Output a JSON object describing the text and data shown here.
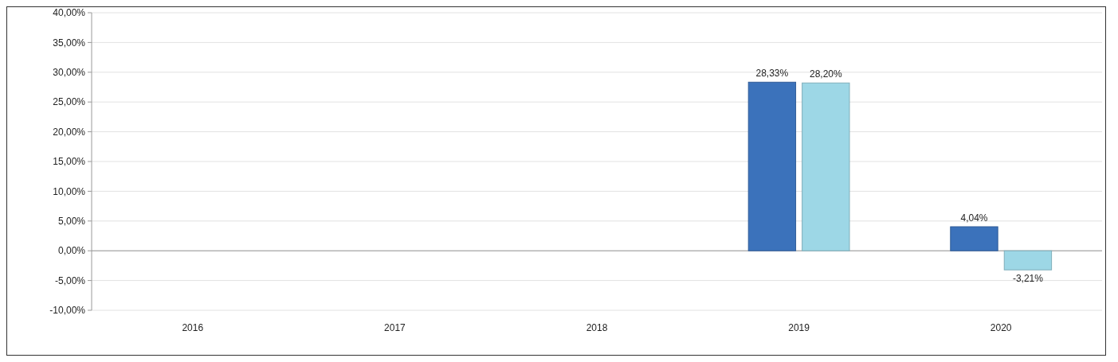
{
  "chart_data": {
    "type": "bar",
    "categories": [
      "2016",
      "2017",
      "2018",
      "2019",
      "2020"
    ],
    "series": [
      {
        "color": "#3b72bb",
        "values": [
          null,
          null,
          null,
          28.33,
          4.04
        ],
        "value_labels": [
          null,
          null,
          null,
          "28,33%",
          "4,04%"
        ]
      },
      {
        "color": "#9dd7e6",
        "values": [
          null,
          null,
          null,
          28.2,
          -3.21
        ],
        "value_labels": [
          null,
          null,
          null,
          "28,20%",
          "-3,21%"
        ]
      }
    ],
    "ylim": [
      -10,
      40
    ],
    "yticks": [
      {
        "value": -10,
        "label": "-10,00%"
      },
      {
        "value": -5,
        "label": "-5,00%"
      },
      {
        "value": 0,
        "label": "0,00%"
      },
      {
        "value": 5,
        "label": "5,00%"
      },
      {
        "value": 10,
        "label": "10,00%"
      },
      {
        "value": 15,
        "label": "15,00%"
      },
      {
        "value": 20,
        "label": "20,00%"
      },
      {
        "value": 25,
        "label": "25,00%"
      },
      {
        "value": 30,
        "label": "30,00%"
      },
      {
        "value": 35,
        "label": "35,00%"
      },
      {
        "value": 40,
        "label": "40,00%"
      }
    ],
    "grid": "y"
  }
}
